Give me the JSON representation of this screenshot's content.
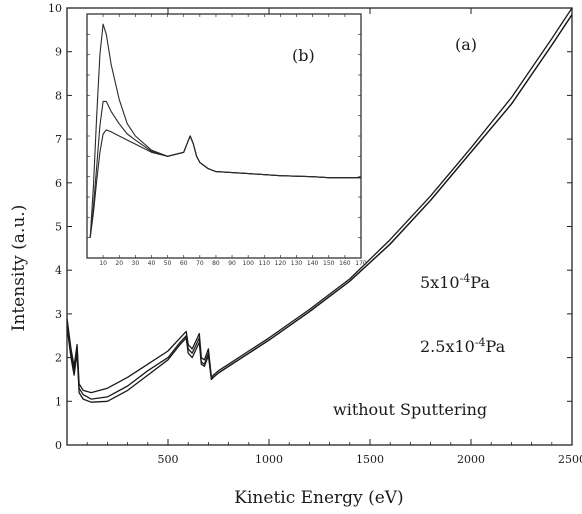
{
  "chart_data": [
    {
      "type": "line",
      "panel_label": "(a)",
      "xlabel": "Kinetic Energy (eV)",
      "ylabel": "Intensity (a.u.)",
      "xlim": [
        0,
        2500
      ],
      "ylim": [
        0,
        10
      ],
      "x_ticks": [
        500,
        1000,
        1500,
        2000,
        2500
      ],
      "y_ticks": [
        0,
        1,
        2,
        3,
        4,
        5,
        6,
        7,
        8,
        9,
        10
      ],
      "grid": false,
      "annotations": [
        "5x10-4Pa",
        "2.5x10-4Pa",
        "without Sputtering"
      ],
      "series": [
        {
          "x": [
            0,
            20,
            35,
            50,
            60,
            80,
            120,
            200,
            300,
            400,
            500,
            560,
            590,
            600,
            620,
            640,
            655,
            665,
            680,
            700,
            715,
            725,
            750,
            800,
            900,
            1000,
            1200,
            1400,
            1600,
            1800,
            2000,
            2200,
            2400,
            2500
          ],
          "y": [
            2.9,
            2.2,
            1.8,
            2.3,
            1.4,
            1.25,
            1.2,
            1.3,
            1.55,
            1.85,
            2.15,
            2.45,
            2.6,
            2.3,
            2.2,
            2.4,
            2.55,
            2.0,
            1.95,
            2.2,
            1.55,
            1.6,
            1.7,
            1.85,
            2.15,
            2.45,
            3.1,
            3.8,
            4.7,
            5.7,
            6.8,
            7.95,
            9.3,
            10.0
          ]
        },
        {
          "x": [
            0,
            20,
            35,
            50,
            60,
            80,
            120,
            200,
            300,
            400,
            500,
            560,
            590,
            600,
            620,
            640,
            655,
            665,
            680,
            700,
            715,
            725,
            750,
            800,
            900,
            1000,
            1200,
            1400,
            1600,
            1800,
            2000,
            2200,
            2400,
            2500
          ],
          "y": [
            2.8,
            2.1,
            1.7,
            2.2,
            1.3,
            1.15,
            1.05,
            1.1,
            1.35,
            1.7,
            2.0,
            2.35,
            2.5,
            2.2,
            2.1,
            2.3,
            2.45,
            1.9,
            1.85,
            2.1,
            1.5,
            1.55,
            1.65,
            1.8,
            2.1,
            2.4,
            3.05,
            3.75,
            4.6,
            5.6,
            6.7,
            7.8,
            9.15,
            9.85
          ]
        },
        {
          "x": [
            0,
            20,
            35,
            50,
            60,
            80,
            120,
            200,
            300,
            400,
            500,
            560,
            590,
            600,
            620,
            640,
            655,
            665,
            680,
            700,
            715,
            725,
            750,
            800,
            900,
            1000,
            1200,
            1400,
            1600,
            1800,
            2000,
            2200,
            2400,
            2500
          ],
          "y": [
            2.7,
            2.0,
            1.6,
            2.1,
            1.2,
            1.05,
            0.98,
            1.0,
            1.25,
            1.6,
            1.95,
            2.3,
            2.45,
            2.1,
            2.0,
            2.2,
            2.35,
            1.85,
            1.8,
            2.05,
            1.5,
            1.55,
            1.65,
            1.8,
            2.1,
            2.4,
            3.05,
            3.75,
            4.6,
            5.6,
            6.7,
            7.8,
            9.15,
            9.85
          ]
        }
      ]
    },
    {
      "type": "line",
      "panel_label": "(b)",
      "inset": true,
      "xlim": [
        0,
        170
      ],
      "x_ticks": [
        10,
        20,
        30,
        40,
        50,
        60,
        70,
        80,
        90,
        100,
        110,
        120,
        130,
        140,
        150,
        160,
        170
      ],
      "y_ticks": [
        0,
        1,
        2,
        3,
        4,
        5,
        6,
        7,
        8,
        9,
        10,
        11,
        12
      ],
      "ylim": [
        0,
        12
      ],
      "grid": false,
      "series": [
        {
          "x": [
            2,
            4,
            6,
            8,
            10,
            12,
            15,
            20,
            25,
            30,
            40,
            50,
            60,
            62,
            64,
            66,
            68,
            70,
            75,
            80,
            100,
            120,
            140,
            150,
            170
          ],
          "y": [
            1.0,
            3.5,
            7.0,
            10.0,
            11.5,
            11.0,
            9.5,
            7.8,
            6.6,
            6.0,
            5.3,
            5.0,
            5.2,
            5.6,
            6.0,
            5.6,
            5.0,
            4.7,
            4.4,
            4.25,
            4.15,
            4.05,
            4.0,
            3.95,
            3.95
          ]
        },
        {
          "x": [
            2,
            4,
            6,
            8,
            10,
            12,
            15,
            20,
            25,
            30,
            40,
            50,
            60,
            62,
            64,
            66,
            68,
            70,
            75,
            80,
            100,
            120,
            140,
            150,
            170
          ],
          "y": [
            1.0,
            2.5,
            4.5,
            6.5,
            7.7,
            7.7,
            7.2,
            6.6,
            6.1,
            5.8,
            5.25,
            5.0,
            5.2,
            5.6,
            6.0,
            5.6,
            5.0,
            4.7,
            4.4,
            4.25,
            4.15,
            4.05,
            4.0,
            3.95,
            3.95
          ]
        },
        {
          "x": [
            2,
            4,
            6,
            8,
            10,
            12,
            15,
            20,
            25,
            30,
            40,
            50,
            60,
            62,
            64,
            66,
            68,
            70,
            75,
            80,
            100,
            120,
            140,
            150,
            170
          ],
          "y": [
            1.0,
            2.2,
            3.8,
            5.2,
            6.1,
            6.3,
            6.2,
            6.0,
            5.8,
            5.6,
            5.2,
            5.0,
            5.2,
            5.6,
            6.0,
            5.6,
            5.0,
            4.7,
            4.4,
            4.25,
            4.15,
            4.05,
            4.0,
            3.95,
            3.95
          ]
        }
      ]
    }
  ]
}
